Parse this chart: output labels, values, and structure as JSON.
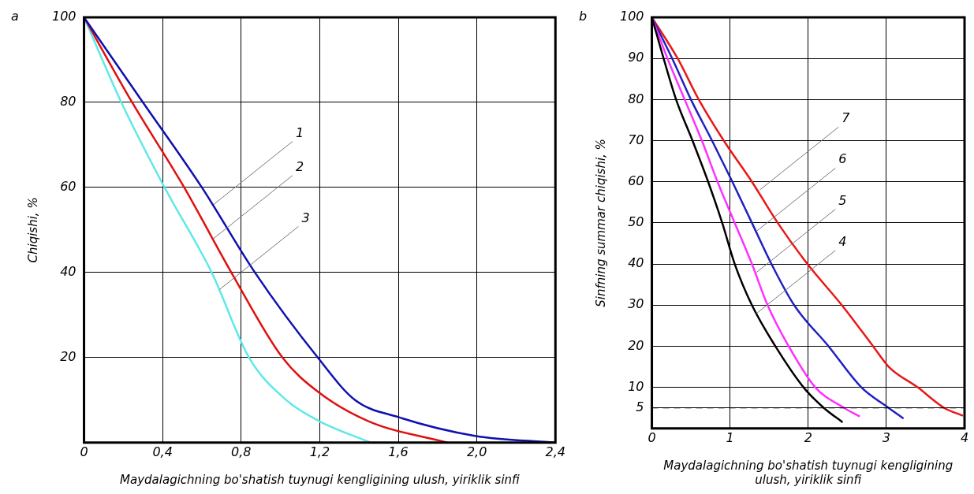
{
  "chart_data": [
    {
      "type": "line",
      "title": "a",
      "xlabel": "Maydalagichning bo'shatish tuynugi kengligining ulush, yiriklik sinfi",
      "ylabel": "Chiqishi, %",
      "xlim": [
        0,
        2.4
      ],
      "xticks": [
        0,
        {
          "value": 0.4,
          "label": "0,4"
        },
        {
          "value": 0.8,
          "label": "0,8"
        },
        {
          "value": 1.2,
          "label": "1,2"
        },
        {
          "value": 1.6,
          "label": "1,6"
        },
        {
          "value": 2.0,
          "label": "2,0"
        },
        {
          "value": 2.4,
          "label": "2,4"
        }
      ],
      "ylim": [
        0,
        100
      ],
      "yticks": [
        20,
        40,
        60,
        80,
        100
      ],
      "grid": true,
      "legend": false,
      "marker": "none",
      "line_style": "solid",
      "series": [
        {
          "color": "#1010b0",
          "x": [
            0,
            0.3,
            0.6,
            0.87,
            1.19,
            1.38,
            1.6,
            1.99,
            2.4
          ],
          "values": [
            100,
            80,
            60,
            40,
            20,
            10,
            6,
            1.6,
            0
          ]
        },
        {
          "color": "#e01010",
          "x": [
            0,
            0.245,
            0.51,
            0.75,
            1.01,
            1.19,
            1.45,
            1.85
          ],
          "values": [
            100,
            80,
            60,
            40,
            20,
            12,
            5,
            0
          ]
        },
        {
          "color": "#60e8e8",
          "x": [
            0,
            0.19,
            0.41,
            0.65,
            0.84,
            1.03,
            1.2,
            1.46
          ],
          "values": [
            100,
            80,
            60,
            40,
            20,
            10,
            5,
            0
          ]
        }
      ],
      "annotations": [
        {
          "text": "1",
          "x": 0.66,
          "y": 56
        },
        {
          "text": "2",
          "x": 0.66,
          "y": 48
        },
        {
          "text": "3",
          "x": 0.69,
          "y": 36
        }
      ]
    },
    {
      "type": "line",
      "title": "b",
      "xlabel": "Maydalagichning bo'shatish tuynugi kengligining ulush, yiriklik sinfi",
      "ylabel": "Sinfning summar chiqishi, %",
      "xlim": [
        0,
        4
      ],
      "xticks": [
        0,
        1,
        2,
        3,
        4
      ],
      "ylim": [
        0,
        100
      ],
      "yticks": [
        5,
        10,
        20,
        30,
        40,
        50,
        60,
        70,
        80,
        90,
        100
      ],
      "grid": true,
      "legend": false,
      "marker": "none",
      "line_style": "solid",
      "series": [
        {
          "color": "#000000",
          "x": [
            0,
            0.15,
            0.31,
            0.52,
            0.72,
            0.9,
            1.06,
            1.28,
            1.58,
            1.94,
            2.2,
            2.44
          ],
          "values": [
            100,
            90,
            80,
            70,
            60,
            50,
            40,
            30,
            20,
            10,
            5,
            1.5
          ]
        },
        {
          "color": "#ff30ff",
          "x": [
            0,
            0.2,
            0.42,
            0.64,
            0.84,
            1.06,
            1.28,
            1.48,
            1.75,
            2.09,
            2.46,
            2.66
          ],
          "values": [
            100,
            90,
            80,
            70,
            60,
            50,
            40,
            30,
            20,
            10,
            5,
            2.9
          ]
        },
        {
          "color": "#2020c0",
          "x": [
            0,
            0.26,
            0.5,
            0.77,
            1.03,
            1.28,
            1.53,
            1.82,
            2.26,
            2.68,
            3.03,
            3.22
          ],
          "values": [
            100,
            90,
            80,
            70,
            60,
            50,
            40,
            30,
            20,
            10,
            5,
            2.4
          ]
        },
        {
          "color": "#e81818",
          "x": [
            0,
            0.33,
            0.6,
            0.92,
            1.28,
            1.61,
            1.99,
            2.43,
            2.83,
            3.03,
            3.4,
            3.74,
            3.98
          ],
          "values": [
            100,
            90,
            80,
            70,
            60,
            50,
            40,
            30,
            20,
            15,
            10,
            5,
            3.1
          ]
        }
      ],
      "ref_lines": [
        {
          "axis": "y",
          "value": 5,
          "color": "#000000",
          "line_style": "dashed"
        }
      ],
      "annotations": [
        {
          "text": "7",
          "x": 1.38,
          "y": 58
        },
        {
          "text": "6",
          "x": 1.34,
          "y": 48
        },
        {
          "text": "5",
          "x": 1.34,
          "y": 38
        },
        {
          "text": "4",
          "x": 1.34,
          "y": 28
        }
      ]
    }
  ]
}
